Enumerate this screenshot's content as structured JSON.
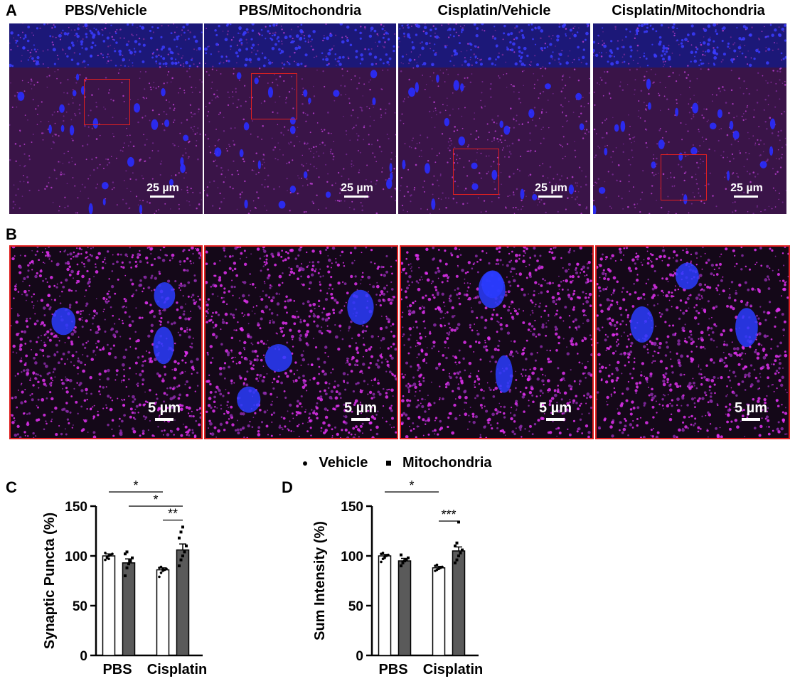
{
  "panel_a": {
    "letter": "A",
    "titles": [
      "PBS/Vehicle",
      "PBS/Mitochondria",
      "Cisplatin/Vehicle",
      "Cisplatin/Mitochondria"
    ],
    "scale_label": "25 µm"
  },
  "panel_b": {
    "letter": "B",
    "scale_label": "5 µm"
  },
  "legend": {
    "vehicle": "Vehicle",
    "mitochondria": "Mitochondria"
  },
  "colors": {
    "nuclei": "#2a2cff",
    "puncta": "#e030f0",
    "zoom_box": "#e02020",
    "vehicle_bar": "#ffffff",
    "mitochondria_bar": "#5a5a5a"
  },
  "chart_data": [
    {
      "type": "bar",
      "panel": "C",
      "ylabel": "Synaptic Puncta (%)",
      "ylim": [
        0,
        150
      ],
      "yticks": [
        0,
        50,
        100,
        150
      ],
      "categories": [
        "PBS",
        "Cisplatin"
      ],
      "series": [
        {
          "name": "Vehicle",
          "values": [
            100,
            86
          ],
          "sem": [
            2,
            2
          ],
          "points": [
            [
              96,
              98,
              100,
              101,
              102,
              103,
              99,
              97
            ],
            [
              79,
              83,
              85,
              86,
              87,
              88,
              89,
              87
            ]
          ]
        },
        {
          "name": "Mitochondria",
          "values": [
            93,
            106
          ],
          "sem": [
            4,
            6
          ],
          "points": [
            [
              80,
              88,
              92,
              95,
              98,
              102,
              104
            ],
            [
              90,
              96,
              100,
              104,
              110,
              118,
              124,
              129
            ]
          ]
        }
      ],
      "significance": [
        {
          "from": [
            0,
            0
          ],
          "to": [
            1,
            0
          ],
          "label": "*"
        },
        {
          "from": [
            0,
            1
          ],
          "to": [
            1,
            1
          ],
          "label": "*"
        },
        {
          "from": [
            1,
            0
          ],
          "to": [
            1,
            1
          ],
          "label": "**"
        }
      ]
    },
    {
      "type": "bar",
      "panel": "D",
      "ylabel": "Sum Intensity (%)",
      "ylim": [
        0,
        150
      ],
      "yticks": [
        0,
        50,
        100,
        150
      ],
      "categories": [
        "PBS",
        "Cisplatin"
      ],
      "series": [
        {
          "name": "Vehicle",
          "values": [
            100,
            88
          ],
          "sem": [
            1.5,
            1.5
          ],
          "points": [
            [
              94,
              97,
              99,
              100,
              101,
              102,
              103,
              98
            ],
            [
              85,
              86,
              87,
              88,
              89,
              90,
              91,
              87
            ]
          ]
        },
        {
          "name": "Mitochondria",
          "values": [
            95,
            105
          ],
          "sem": [
            2.5,
            4
          ],
          "points": [
            [
              90,
              93,
              95,
              96,
              98,
              101,
              94
            ],
            [
              93,
              96,
              100,
              103,
              106,
              110,
              113,
              134
            ]
          ]
        }
      ],
      "significance": [
        {
          "from": [
            0,
            0
          ],
          "to": [
            1,
            0
          ],
          "label": "*"
        },
        {
          "from": [
            1,
            0
          ],
          "to": [
            1,
            1
          ],
          "label": "***"
        }
      ]
    }
  ]
}
